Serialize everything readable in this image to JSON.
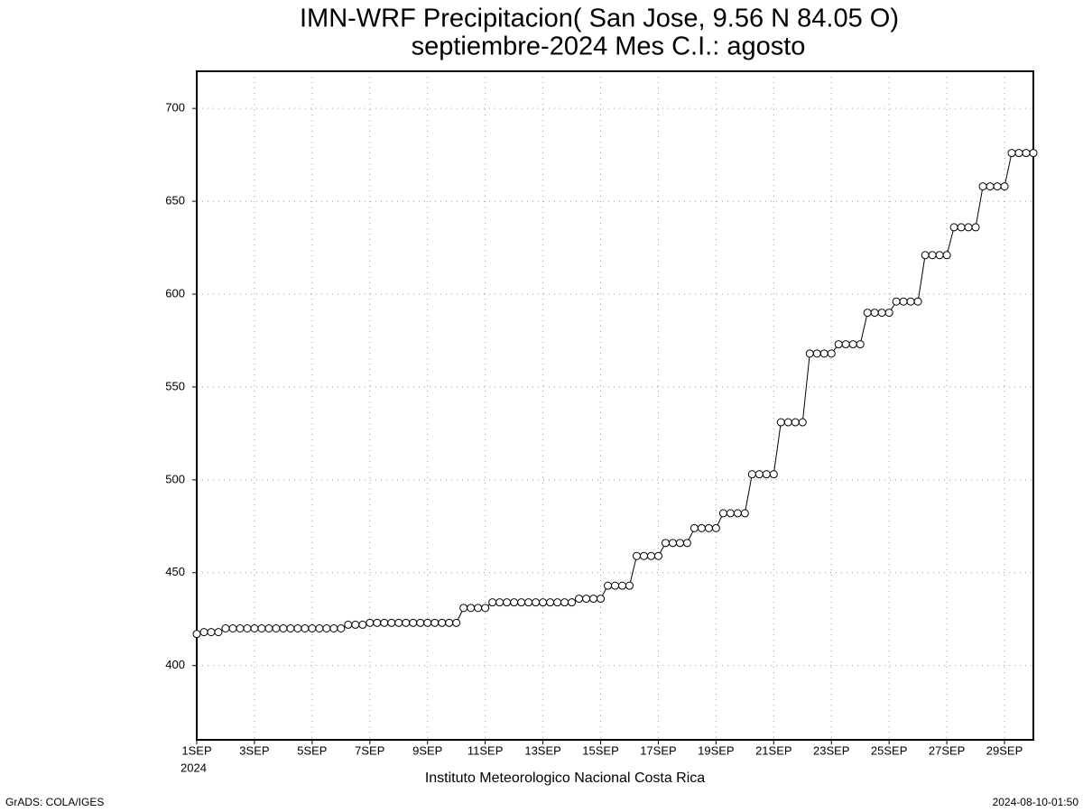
{
  "chart_data": {
    "type": "line",
    "title": "IMN-WRF  Precipitacion( San Jose, 9.56  N 84.05  O)",
    "subtitle": "septiembre-2024 Mes C.I.: agosto",
    "x_label": "Instituto Meteorologico Nacional Costa Rica",
    "x_sublabel": "2024",
    "x": [
      1,
      1.25,
      1.5,
      1.75,
      2,
      2.25,
      2.5,
      2.75,
      3,
      3.25,
      3.5,
      3.75,
      4,
      4.25,
      4.5,
      4.75,
      5,
      5.25,
      5.5,
      5.75,
      6,
      6.25,
      6.5,
      6.75,
      7,
      7.25,
      7.5,
      7.75,
      8,
      8.25,
      8.5,
      8.75,
      9,
      9.25,
      9.5,
      9.75,
      10,
      10.25,
      10.5,
      10.75,
      11,
      11.25,
      11.5,
      11.75,
      12,
      12.25,
      12.5,
      12.75,
      13,
      13.25,
      13.5,
      13.75,
      14,
      14.25,
      14.5,
      14.75,
      15,
      15.25,
      15.5,
      15.75,
      16,
      16.25,
      16.5,
      16.75,
      17,
      17.25,
      17.5,
      17.75,
      18,
      18.25,
      18.5,
      18.75,
      19,
      19.25,
      19.5,
      19.75,
      20,
      20.25,
      20.5,
      20.75,
      21,
      21.25,
      21.5,
      21.75,
      22,
      22.25,
      22.5,
      22.75,
      23,
      23.25,
      23.5,
      23.75,
      24,
      24.25,
      24.5,
      24.75,
      25,
      25.25,
      25.5,
      25.75,
      26,
      26.25,
      26.5,
      26.75,
      27,
      27.25,
      27.5,
      27.75,
      28,
      28.25,
      28.5,
      28.75,
      29,
      29.25,
      29.5,
      29.75,
      30
    ],
    "series": [
      {
        "color": "#000000",
        "values": [
          417,
          418,
          418,
          418,
          420,
          420,
          420,
          420,
          420,
          420,
          420,
          420,
          420,
          420,
          420,
          420,
          420,
          420,
          420,
          420,
          420,
          422,
          422,
          422,
          423,
          423,
          423,
          423,
          423,
          423,
          423,
          423,
          423,
          423,
          423,
          423,
          423,
          431,
          431,
          431,
          431,
          434,
          434,
          434,
          434,
          434,
          434,
          434,
          434,
          434,
          434,
          434,
          434,
          436,
          436,
          436,
          436,
          443,
          443,
          443,
          443,
          459,
          459,
          459,
          459,
          466,
          466,
          466,
          466,
          474,
          474,
          474,
          474,
          482,
          482,
          482,
          482,
          503,
          503,
          503,
          503,
          531,
          531,
          531,
          531,
          568,
          568,
          568,
          568,
          573,
          573,
          573,
          573,
          590,
          590,
          590,
          590,
          596,
          596,
          596,
          596,
          621,
          621,
          621,
          621,
          636,
          636,
          636,
          636,
          658,
          658,
          658,
          658,
          676,
          676,
          676,
          676
        ]
      }
    ],
    "xlim": [
      1,
      30
    ],
    "xticks": [
      {
        "value": 1,
        "label": "1SEP"
      },
      {
        "value": 3,
        "label": "3SEP"
      },
      {
        "value": 5,
        "label": "5SEP"
      },
      {
        "value": 7,
        "label": "7SEP"
      },
      {
        "value": 9,
        "label": "9SEP"
      },
      {
        "value": 11,
        "label": "11SEP"
      },
      {
        "value": 13,
        "label": "13SEP"
      },
      {
        "value": 15,
        "label": "15SEP"
      },
      {
        "value": 17,
        "label": "17SEP"
      },
      {
        "value": 19,
        "label": "19SEP"
      },
      {
        "value": 21,
        "label": "21SEP"
      },
      {
        "value": 23,
        "label": "23SEP"
      },
      {
        "value": 25,
        "label": "25SEP"
      },
      {
        "value": 27,
        "label": "27SEP"
      },
      {
        "value": 29,
        "label": "29SEP"
      }
    ],
    "ylim": [
      360,
      720
    ],
    "yticks": [
      400,
      450,
      500,
      550,
      600,
      650,
      700
    ],
    "grid": true
  },
  "footer": {
    "left": "GrADS: COLA/IGES",
    "right": "2024-08-10-01:50"
  }
}
